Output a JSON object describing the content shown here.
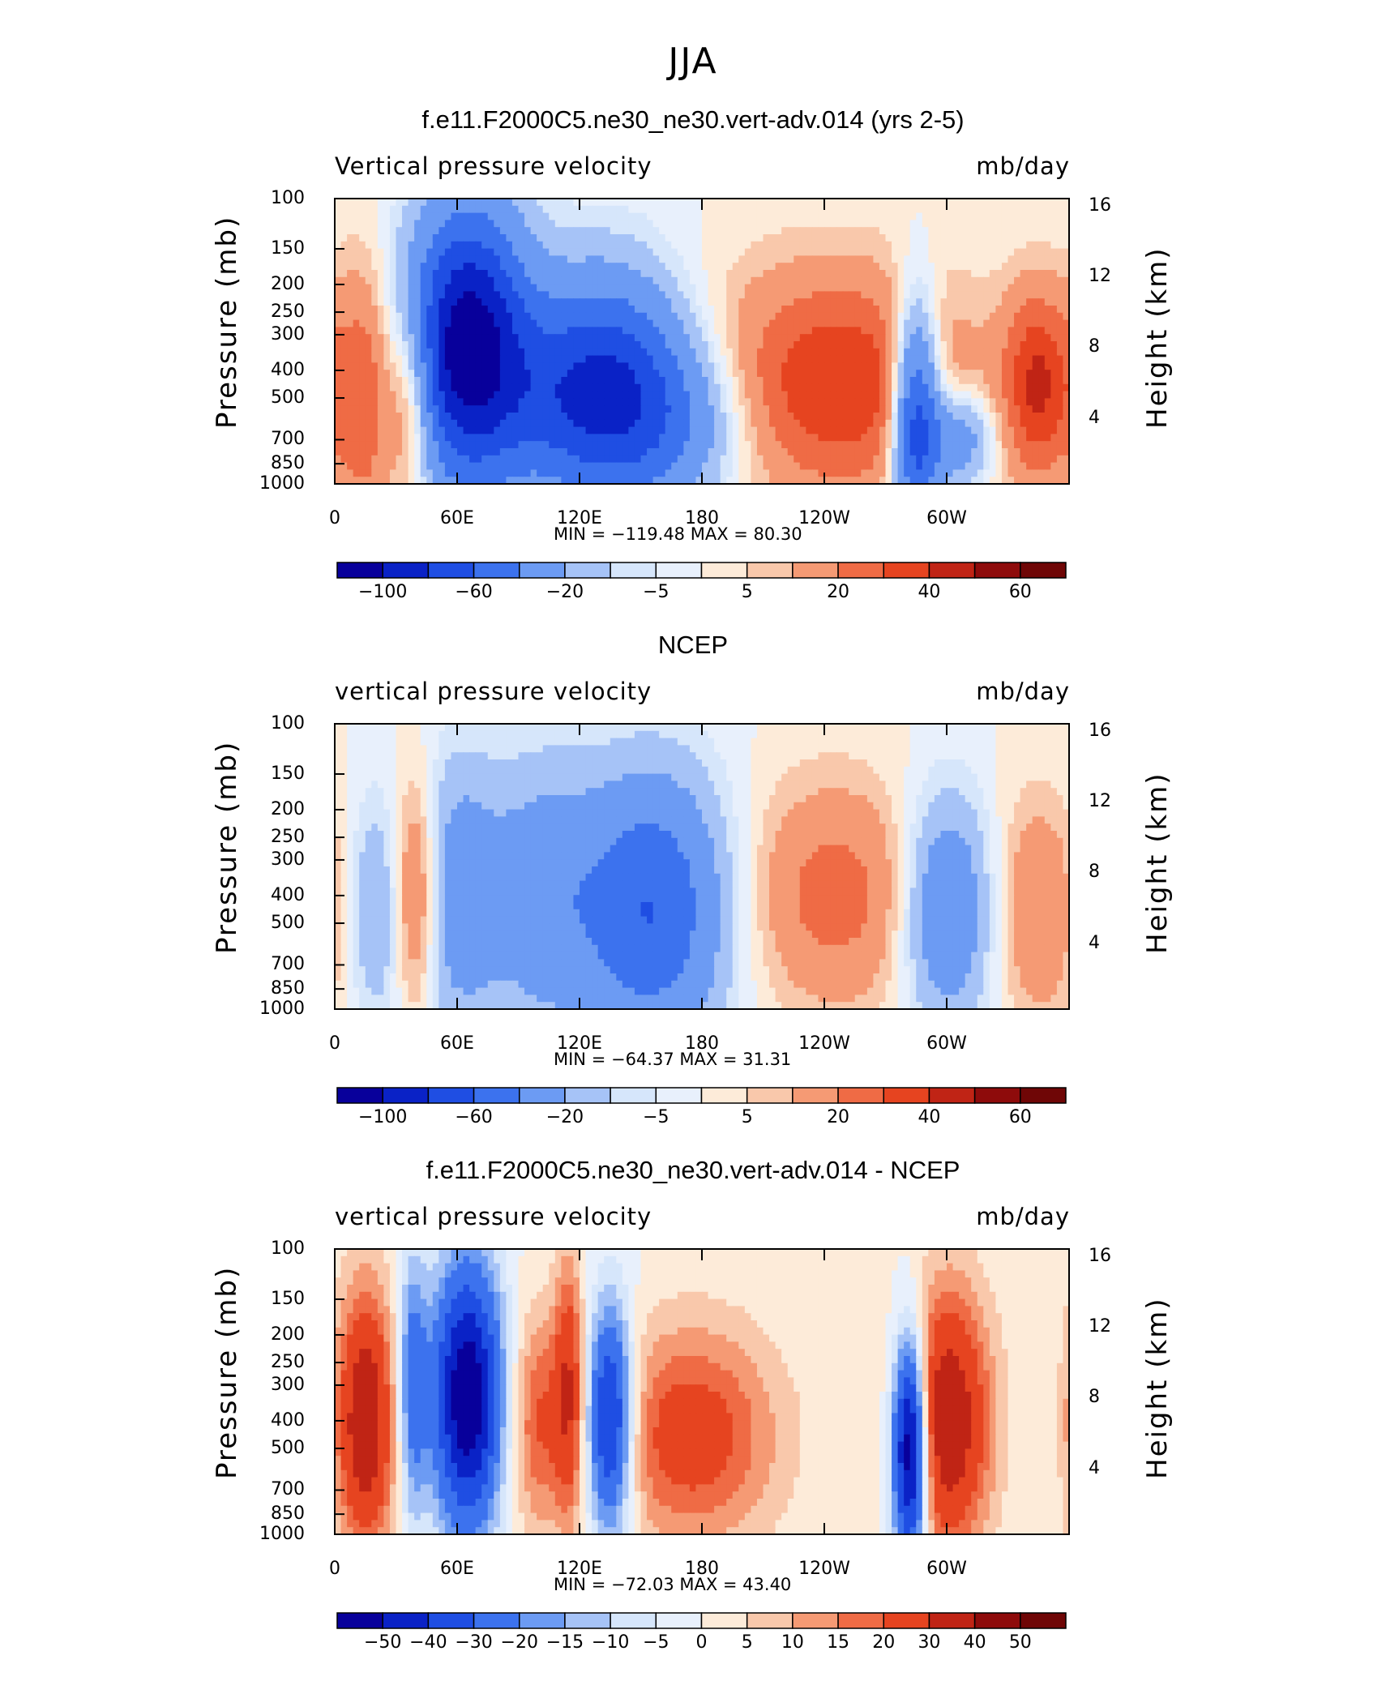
{
  "page_title": "JJA",
  "colors": {
    "full_palette": [
      "#08009b",
      "#0a22c6",
      "#1f4ee3",
      "#3c72ee",
      "#6c9bf3",
      "#a6c3f7",
      "#d6e6fb",
      "#fdebd9",
      "#f9c8ab",
      "#f59a74",
      "#ef6b45",
      "#e64420",
      "#c02415",
      "#8e0b0b"
    ]
  },
  "panels": [
    {
      "title": "f.e11.F2000C5.ne30_ne30.vert-adv.014 (yrs 2-5)",
      "variable": "Vertical pressure velocity",
      "units": "mb/day",
      "ylabel_left": "Pressure (mb)",
      "ylabel_right": "Height (km)",
      "pressure_ticks": [
        "100",
        "150",
        "200",
        "250",
        "300",
        "400",
        "500",
        "700",
        "850",
        "1000"
      ],
      "height_ticks": [
        "16",
        "12",
        "8",
        "4"
      ],
      "x_ticks": [
        "0",
        "60E",
        "120E",
        "180",
        "120W",
        "60W"
      ],
      "minmax": "MIN = −119.48   MAX =   80.30",
      "colorbar_labels": [
        "−100",
        "−60",
        "−20",
        "−5",
        "5",
        "20",
        "40",
        "60"
      ]
    },
    {
      "title": "NCEP",
      "variable": "vertical pressure velocity",
      "units": "mb/day",
      "ylabel_left": "Pressure (mb)",
      "ylabel_right": "Height (km)",
      "pressure_ticks": [
        "100",
        "150",
        "200",
        "250",
        "300",
        "400",
        "500",
        "700",
        "850",
        "1000"
      ],
      "height_ticks": [
        "16",
        "12",
        "8",
        "4"
      ],
      "x_ticks": [
        "0",
        "60E",
        "120E",
        "180",
        "120W",
        "60W"
      ],
      "minmax": "MIN = −64.37   MAX =   31.31",
      "colorbar_labels": [
        "−100",
        "−60",
        "−20",
        "−5",
        "5",
        "20",
        "40",
        "60"
      ]
    },
    {
      "title": "f.e11.F2000C5.ne30_ne30.vert-adv.014 - NCEP",
      "variable": "vertical pressure velocity",
      "units": "mb/day",
      "ylabel_left": "Pressure (mb)",
      "ylabel_right": "Height (km)",
      "pressure_ticks": [
        "100",
        "150",
        "200",
        "250",
        "300",
        "400",
        "500",
        "700",
        "850",
        "1000"
      ],
      "height_ticks": [
        "16",
        "12",
        "8",
        "4"
      ],
      "x_ticks": [
        "0",
        "60E",
        "120E",
        "180",
        "120W",
        "60W"
      ],
      "minmax": "MIN = −72.03   MAX =   43.40",
      "colorbar_labels": [
        "−50",
        "−40",
        "−30",
        "−20",
        "−15",
        "−10",
        "−5",
        "0",
        "5",
        "10",
        "15",
        "20",
        "30",
        "40",
        "50"
      ]
    }
  ],
  "chart_data": [
    {
      "type": "heatmap",
      "title": "f.e11.F2000C5.ne30_ne30.vert-adv.014 (yrs 2-5)",
      "xlabel": "",
      "ylabel": "Pressure (mb)",
      "x_range": [
        0,
        360
      ],
      "y_range_mb": [
        1000,
        100
      ],
      "y_scale": "log",
      "min": -119.48,
      "max": 80.3,
      "features": [
        {
          "lon": 15,
          "p": 500,
          "sign": 1,
          "amp": 30,
          "width": 10,
          "ptop": 150
        },
        {
          "lon": 38,
          "p": 500,
          "sign": 1,
          "amp": 35,
          "width": 8,
          "ptop": 250
        },
        {
          "lon": 65,
          "p": 330,
          "sign": -1,
          "amp": 115,
          "width": 20,
          "ptop": 150
        },
        {
          "lon": 105,
          "p": 500,
          "sign": -1,
          "amp": 30,
          "width": 22,
          "ptop": 250
        },
        {
          "lon": 135,
          "p": 450,
          "sign": -1,
          "amp": 65,
          "width": 25,
          "ptop": 200
        },
        {
          "lon": 165,
          "p": 600,
          "sign": -1,
          "amp": 35,
          "width": 28,
          "ptop": 300
        },
        {
          "lon": 245,
          "p": 450,
          "sign": 1,
          "amp": 40,
          "width": 45,
          "ptop": 200
        },
        {
          "lon": 285,
          "p": 600,
          "sign": -1,
          "amp": 80,
          "width": 8,
          "ptop": 200
        },
        {
          "lon": 305,
          "p": 700,
          "sign": -1,
          "amp": 40,
          "width": 12,
          "ptop": 500
        },
        {
          "lon": 345,
          "p": 450,
          "sign": 1,
          "amp": 40,
          "width": 12,
          "ptop": 250
        }
      ]
    },
    {
      "type": "heatmap",
      "title": "NCEP",
      "xlabel": "",
      "ylabel": "Pressure (mb)",
      "x_range": [
        0,
        360
      ],
      "y_range_mb": [
        1000,
        100
      ],
      "y_scale": "log",
      "min": -64.37,
      "max": 31.31,
      "features": [
        {
          "lon": 20,
          "p": 450,
          "sign": -1,
          "amp": 20,
          "width": 10,
          "ptop": 200
        },
        {
          "lon": 40,
          "p": 400,
          "sign": 1,
          "amp": 30,
          "width": 8,
          "ptop": 200
        },
        {
          "lon": 60,
          "p": 400,
          "sign": -1,
          "amp": 30,
          "width": 14,
          "ptop": 150
        },
        {
          "lon": 100,
          "p": 400,
          "sign": -1,
          "amp": 30,
          "width": 20,
          "ptop": 150
        },
        {
          "lon": 155,
          "p": 450,
          "sign": -1,
          "amp": 60,
          "width": 25,
          "ptop": 150
        },
        {
          "lon": 245,
          "p": 400,
          "sign": 1,
          "amp": 25,
          "width": 30,
          "ptop": 200
        },
        {
          "lon": 300,
          "p": 450,
          "sign": -1,
          "amp": 40,
          "width": 15,
          "ptop": 200
        },
        {
          "lon": 345,
          "p": 450,
          "sign": 1,
          "amp": 20,
          "width": 15,
          "ptop": 200
        }
      ]
    },
    {
      "type": "heatmap",
      "title": "f.e11.F2000C5.ne30_ne30.vert-adv.014 - NCEP",
      "xlabel": "",
      "ylabel": "Pressure (mb)",
      "x_range": [
        0,
        360
      ],
      "y_range_mb": [
        1000,
        100
      ],
      "y_scale": "log",
      "min": -72.03,
      "max": 43.4,
      "features": [
        {
          "lon": 15,
          "p": 400,
          "sign": 1,
          "amp": 40,
          "width": 10,
          "ptop": 150
        },
        {
          "lon": 38,
          "p": 300,
          "sign": -1,
          "amp": 25,
          "width": 5,
          "ptop": 150
        },
        {
          "lon": 65,
          "p": 330,
          "sign": -1,
          "amp": 60,
          "width": 12,
          "ptop": 150
        },
        {
          "lon": 100,
          "p": 400,
          "sign": 1,
          "amp": 20,
          "width": 10,
          "ptop": 200
        },
        {
          "lon": 115,
          "p": 300,
          "sign": 1,
          "amp": 25,
          "width": 5,
          "ptop": 150
        },
        {
          "lon": 135,
          "p": 400,
          "sign": -1,
          "amp": 50,
          "width": 8,
          "ptop": 200
        },
        {
          "lon": 175,
          "p": 450,
          "sign": 1,
          "amp": 25,
          "width": 30,
          "ptop": 200
        },
        {
          "lon": 282,
          "p": 500,
          "sign": -1,
          "amp": 70,
          "width": 6,
          "ptop": 200
        },
        {
          "lon": 300,
          "p": 400,
          "sign": 1,
          "amp": 40,
          "width": 15,
          "ptop": 150
        }
      ]
    }
  ]
}
